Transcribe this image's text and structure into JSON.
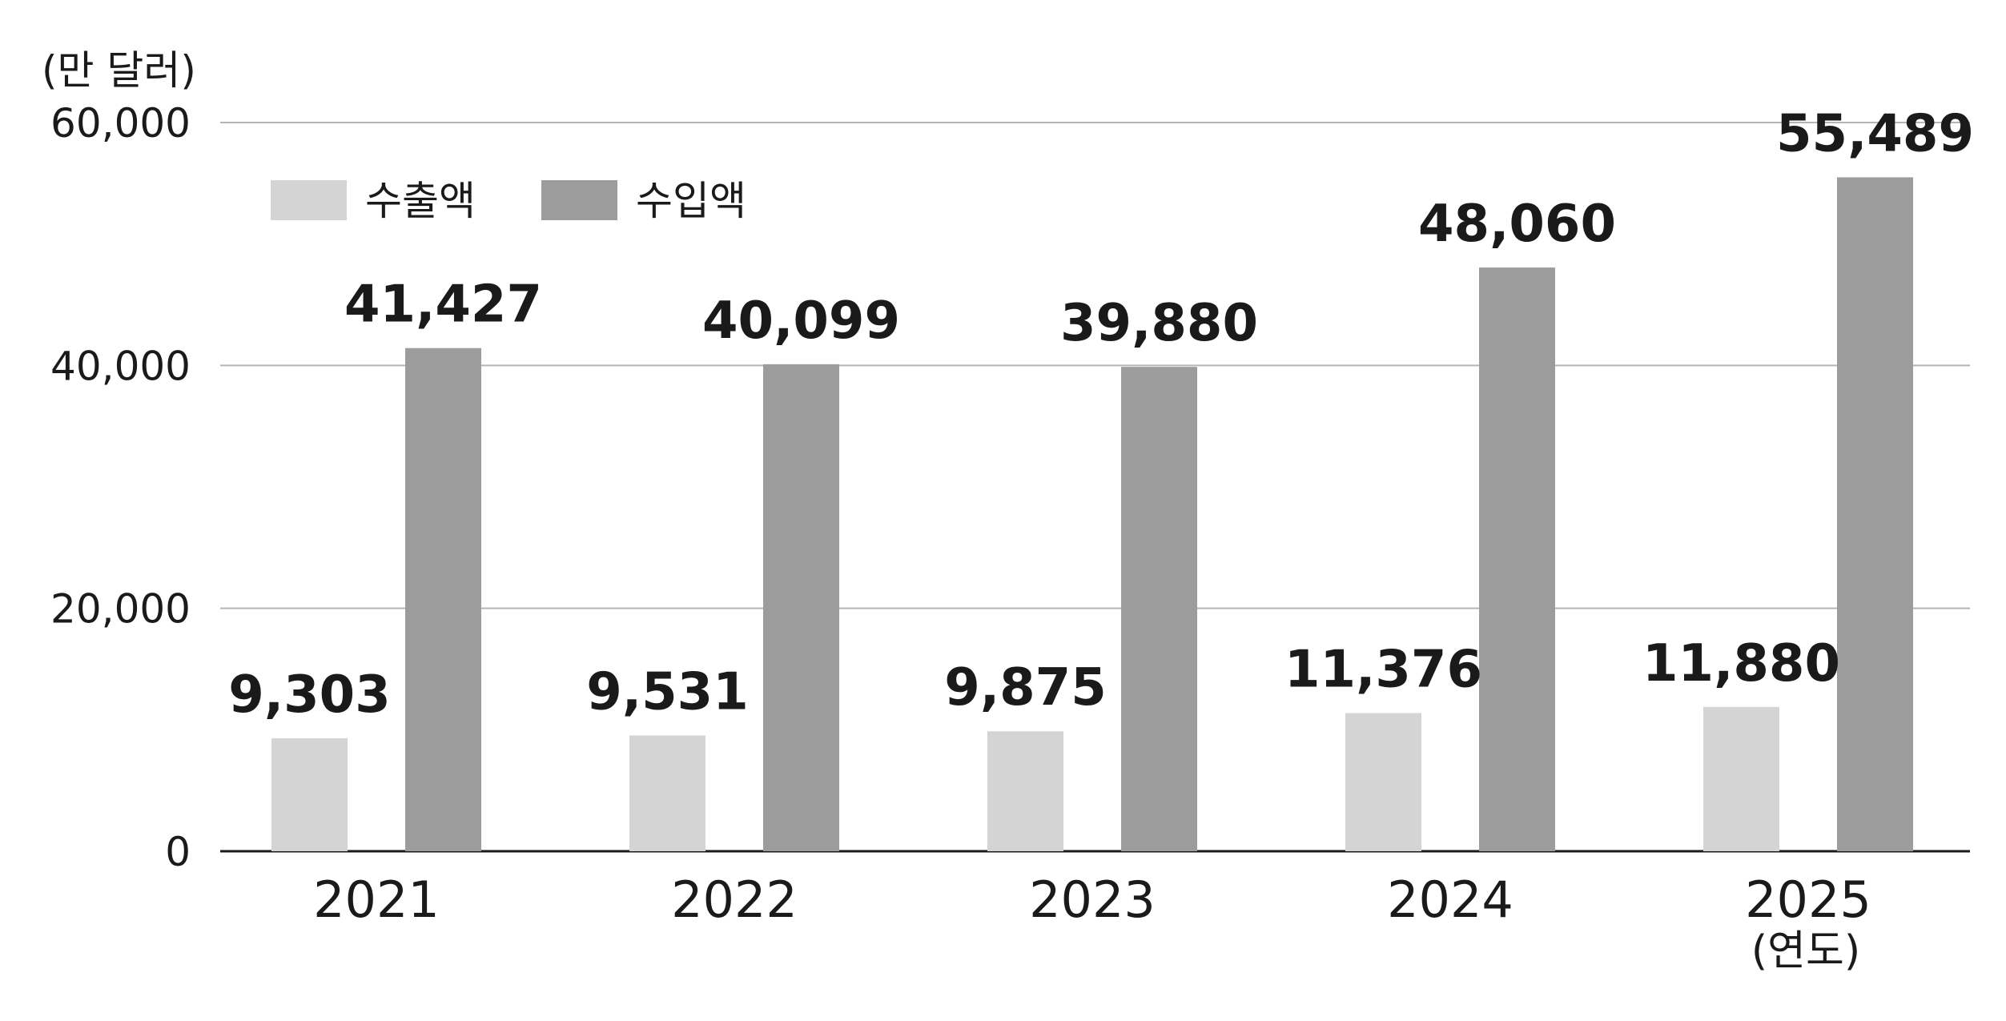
{
  "chart_data": {
    "type": "bar",
    "unit_label": "(만 달러)",
    "categories": [
      "2021",
      "2022",
      "2023",
      "2024",
      "2025"
    ],
    "x_suffix": "(연도)",
    "series": [
      {
        "name": "수출액",
        "color": "#d4d4d4",
        "values": [
          9303,
          9531,
          9875,
          11376,
          11880
        ],
        "labels": [
          "9,303",
          "9,531",
          "9,875",
          "11,376",
          "11,880"
        ]
      },
      {
        "name": "수입액",
        "color": "#9b9c9b",
        "values": [
          41427,
          40099,
          39880,
          48060,
          55489
        ],
        "labels": [
          "41,427",
          "40,099",
          "39,880",
          "48,060",
          "55,489"
        ]
      }
    ],
    "ylim": [
      0,
      60000
    ],
    "yticks": [
      0,
      20000,
      40000,
      60000
    ],
    "ytick_labels": [
      "0",
      "20,000",
      "40,000",
      "60,000"
    ],
    "grid": true,
    "legend_position": "top-left"
  }
}
